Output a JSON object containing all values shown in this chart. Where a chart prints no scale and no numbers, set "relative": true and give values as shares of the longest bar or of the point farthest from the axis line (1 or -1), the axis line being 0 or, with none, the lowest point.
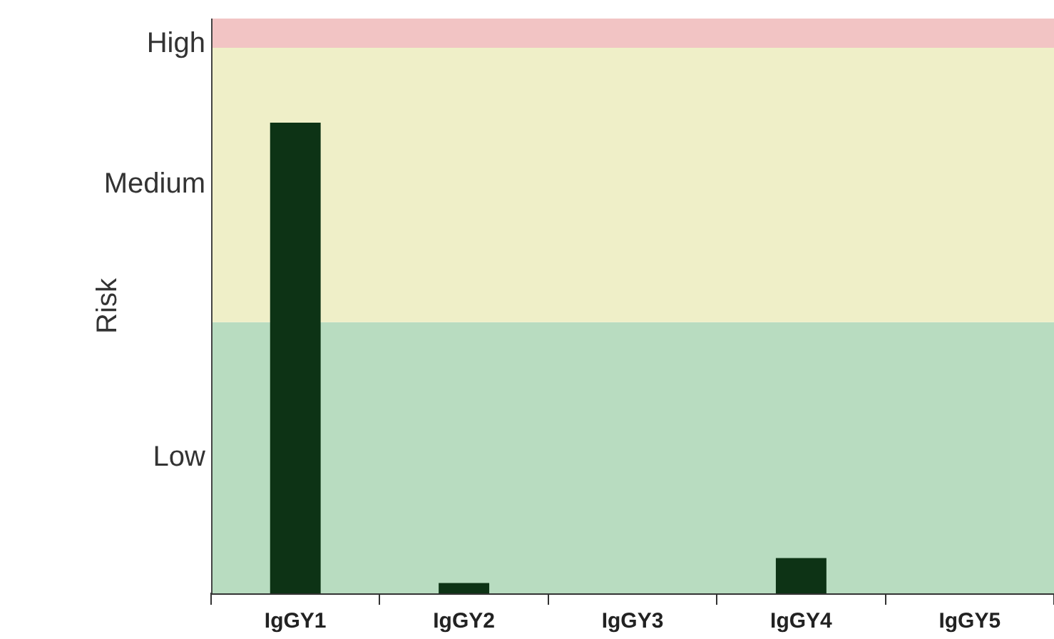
{
  "chart_data": {
    "type": "bar",
    "ylabel": "Risk",
    "relative": true,
    "categories": [
      "IgGY1",
      "IgGY2",
      "IgGY3",
      "IgGY4",
      "IgGY5"
    ],
    "values": [
      1,
      0.022,
      0,
      0.075,
      0
    ],
    "color": "#0d3315",
    "bands": [
      {
        "axis": "y",
        "from": 0,
        "to": 0.576,
        "label": "Low",
        "color": "#b8dcc0"
      },
      {
        "axis": "y",
        "from": 0.576,
        "to": 1.159,
        "label": "Medium",
        "color": "#efefc8"
      },
      {
        "axis": "y",
        "from": 1.159,
        "to": 1.221,
        "label": "High",
        "color": "#f2c4c4"
      }
    ],
    "grid": false,
    "legend": false
  }
}
